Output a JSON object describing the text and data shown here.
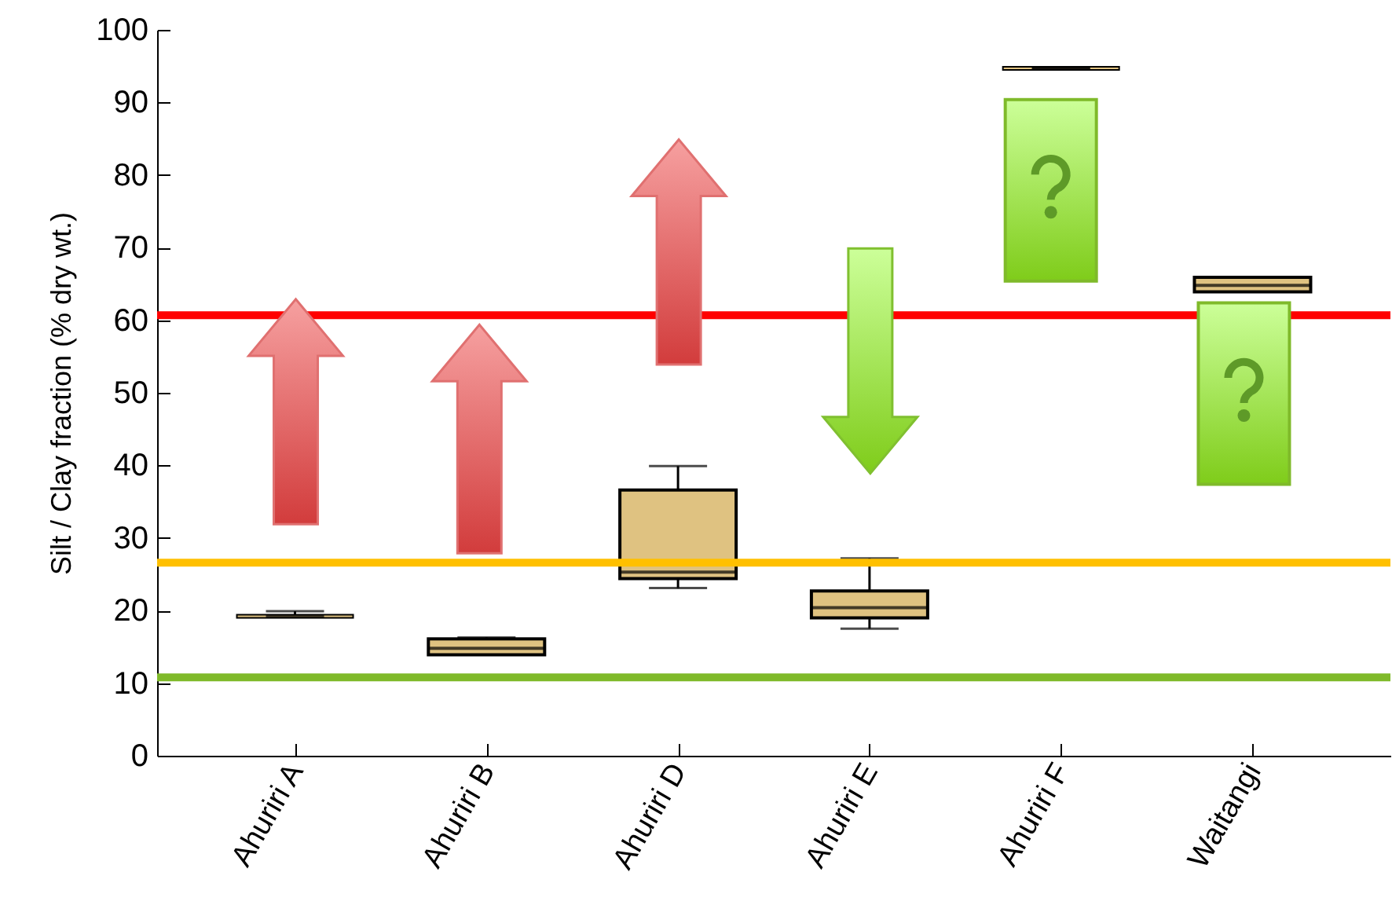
{
  "chart_data": {
    "type": "box",
    "ylabel": "Silt / Clay fraction (% dry wt.)",
    "categories": [
      "Ahuriri A",
      "Ahuriri B",
      "Ahuriri D",
      "Ahuriri E",
      "Ahuriri F",
      "Waitangi"
    ],
    "series": [
      {
        "color": "#dfc281",
        "boxes": [
          {
            "low": 19.2,
            "q1": 19.2,
            "median": 19.2,
            "q3": 19.2,
            "high": 19.9
          },
          {
            "low": 13.9,
            "q1": 13.9,
            "median": 14.8,
            "q3": 16.1,
            "high": 16.3
          },
          {
            "low": 23.1,
            "q1": 24.4,
            "median": 25.3,
            "q3": 36.6,
            "high": 39.9
          },
          {
            "low": 17.5,
            "q1": 19.0,
            "median": 20.4,
            "q3": 22.7,
            "high": 27.2
          },
          {
            "low": 94.7,
            "q1": 94.7,
            "median": 94.7,
            "q3": 94.7,
            "high": 94.7
          },
          {
            "low": 63.9,
            "q1": 63.9,
            "median": 64.8,
            "q3": 65.9,
            "high": 65.9
          }
        ]
      }
    ],
    "ylim": [
      0,
      100
    ],
    "yticks": [
      0,
      10,
      20,
      30,
      40,
      50,
      60,
      70,
      80,
      90,
      100
    ],
    "grid": false,
    "ref_lines": [
      {
        "axis": "y",
        "value": 60.7,
        "color": "#ff0000"
      },
      {
        "axis": "y",
        "value": 26.6,
        "color": "#ffc000"
      },
      {
        "axis": "y",
        "value": 10.8,
        "color": "#7fba2a"
      }
    ]
  }
}
